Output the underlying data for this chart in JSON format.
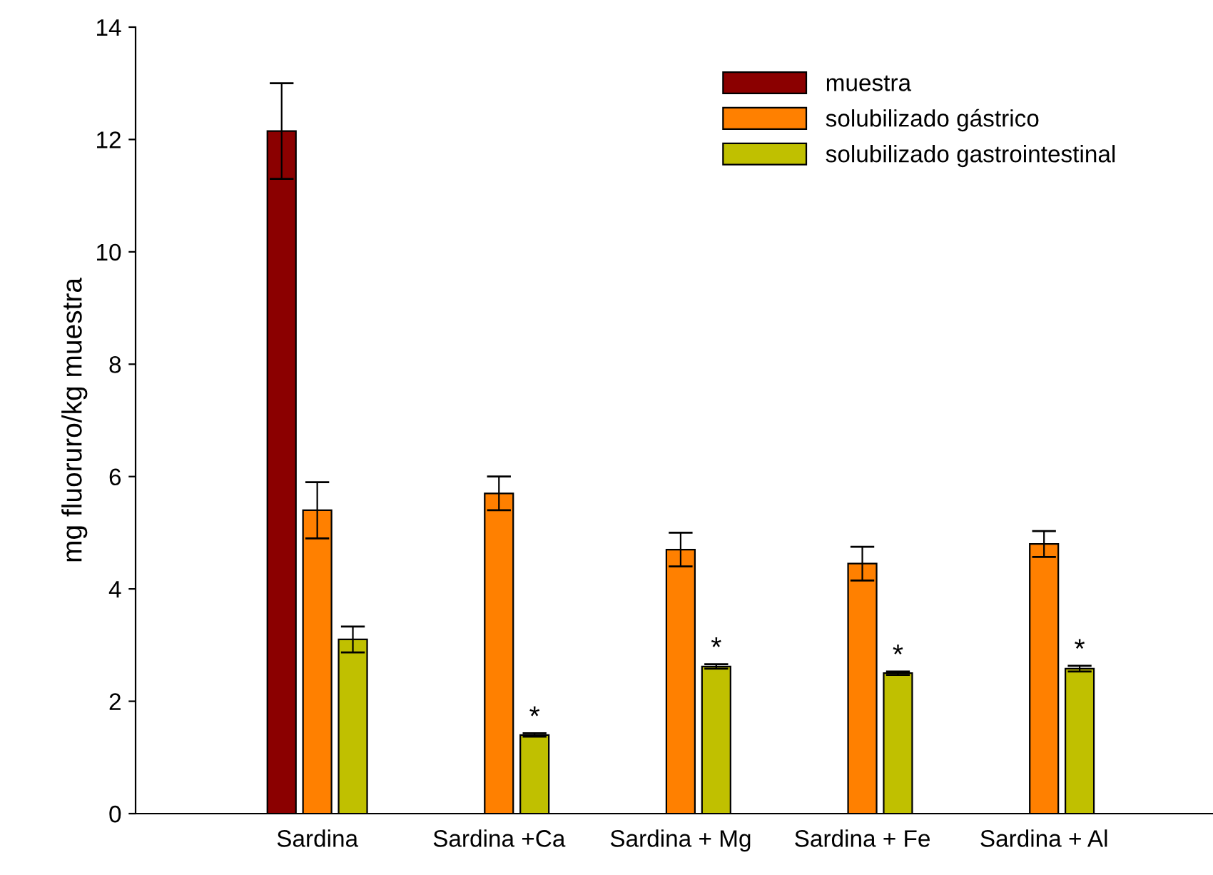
{
  "chart_data": {
    "type": "bar",
    "ylabel": "mg fluoruro/kg muestra",
    "categories": [
      "Sardina",
      "Sardina +Ca",
      "Sardina + Mg",
      "Sardina + Fe",
      "Sardina + Al"
    ],
    "series": [
      {
        "name": "muestra",
        "color": "#8b0000",
        "values": [
          12.15,
          null,
          null,
          null,
          null
        ],
        "errors": [
          0.85,
          null,
          null,
          null,
          null
        ]
      },
      {
        "name": "solubilizado gástrico",
        "color": "#ff8000",
        "values": [
          5.4,
          5.7,
          4.7,
          4.45,
          4.8
        ],
        "errors": [
          0.5,
          0.3,
          0.3,
          0.3,
          0.23
        ]
      },
      {
        "name": "solubilizado gastrointestinal",
        "color": "#c0c000",
        "values": [
          3.1,
          1.4,
          2.62,
          2.5,
          2.58
        ],
        "errors": [
          0.23,
          0.03,
          0.04,
          0.03,
          0.05
        ],
        "value_labels": [
          null,
          "*",
          "*",
          "*",
          "*"
        ]
      }
    ],
    "ylim": [
      0,
      14
    ],
    "yticks": [
      0,
      2,
      4,
      6,
      8,
      10,
      12,
      14
    ],
    "grid": false,
    "legend": "top right"
  }
}
